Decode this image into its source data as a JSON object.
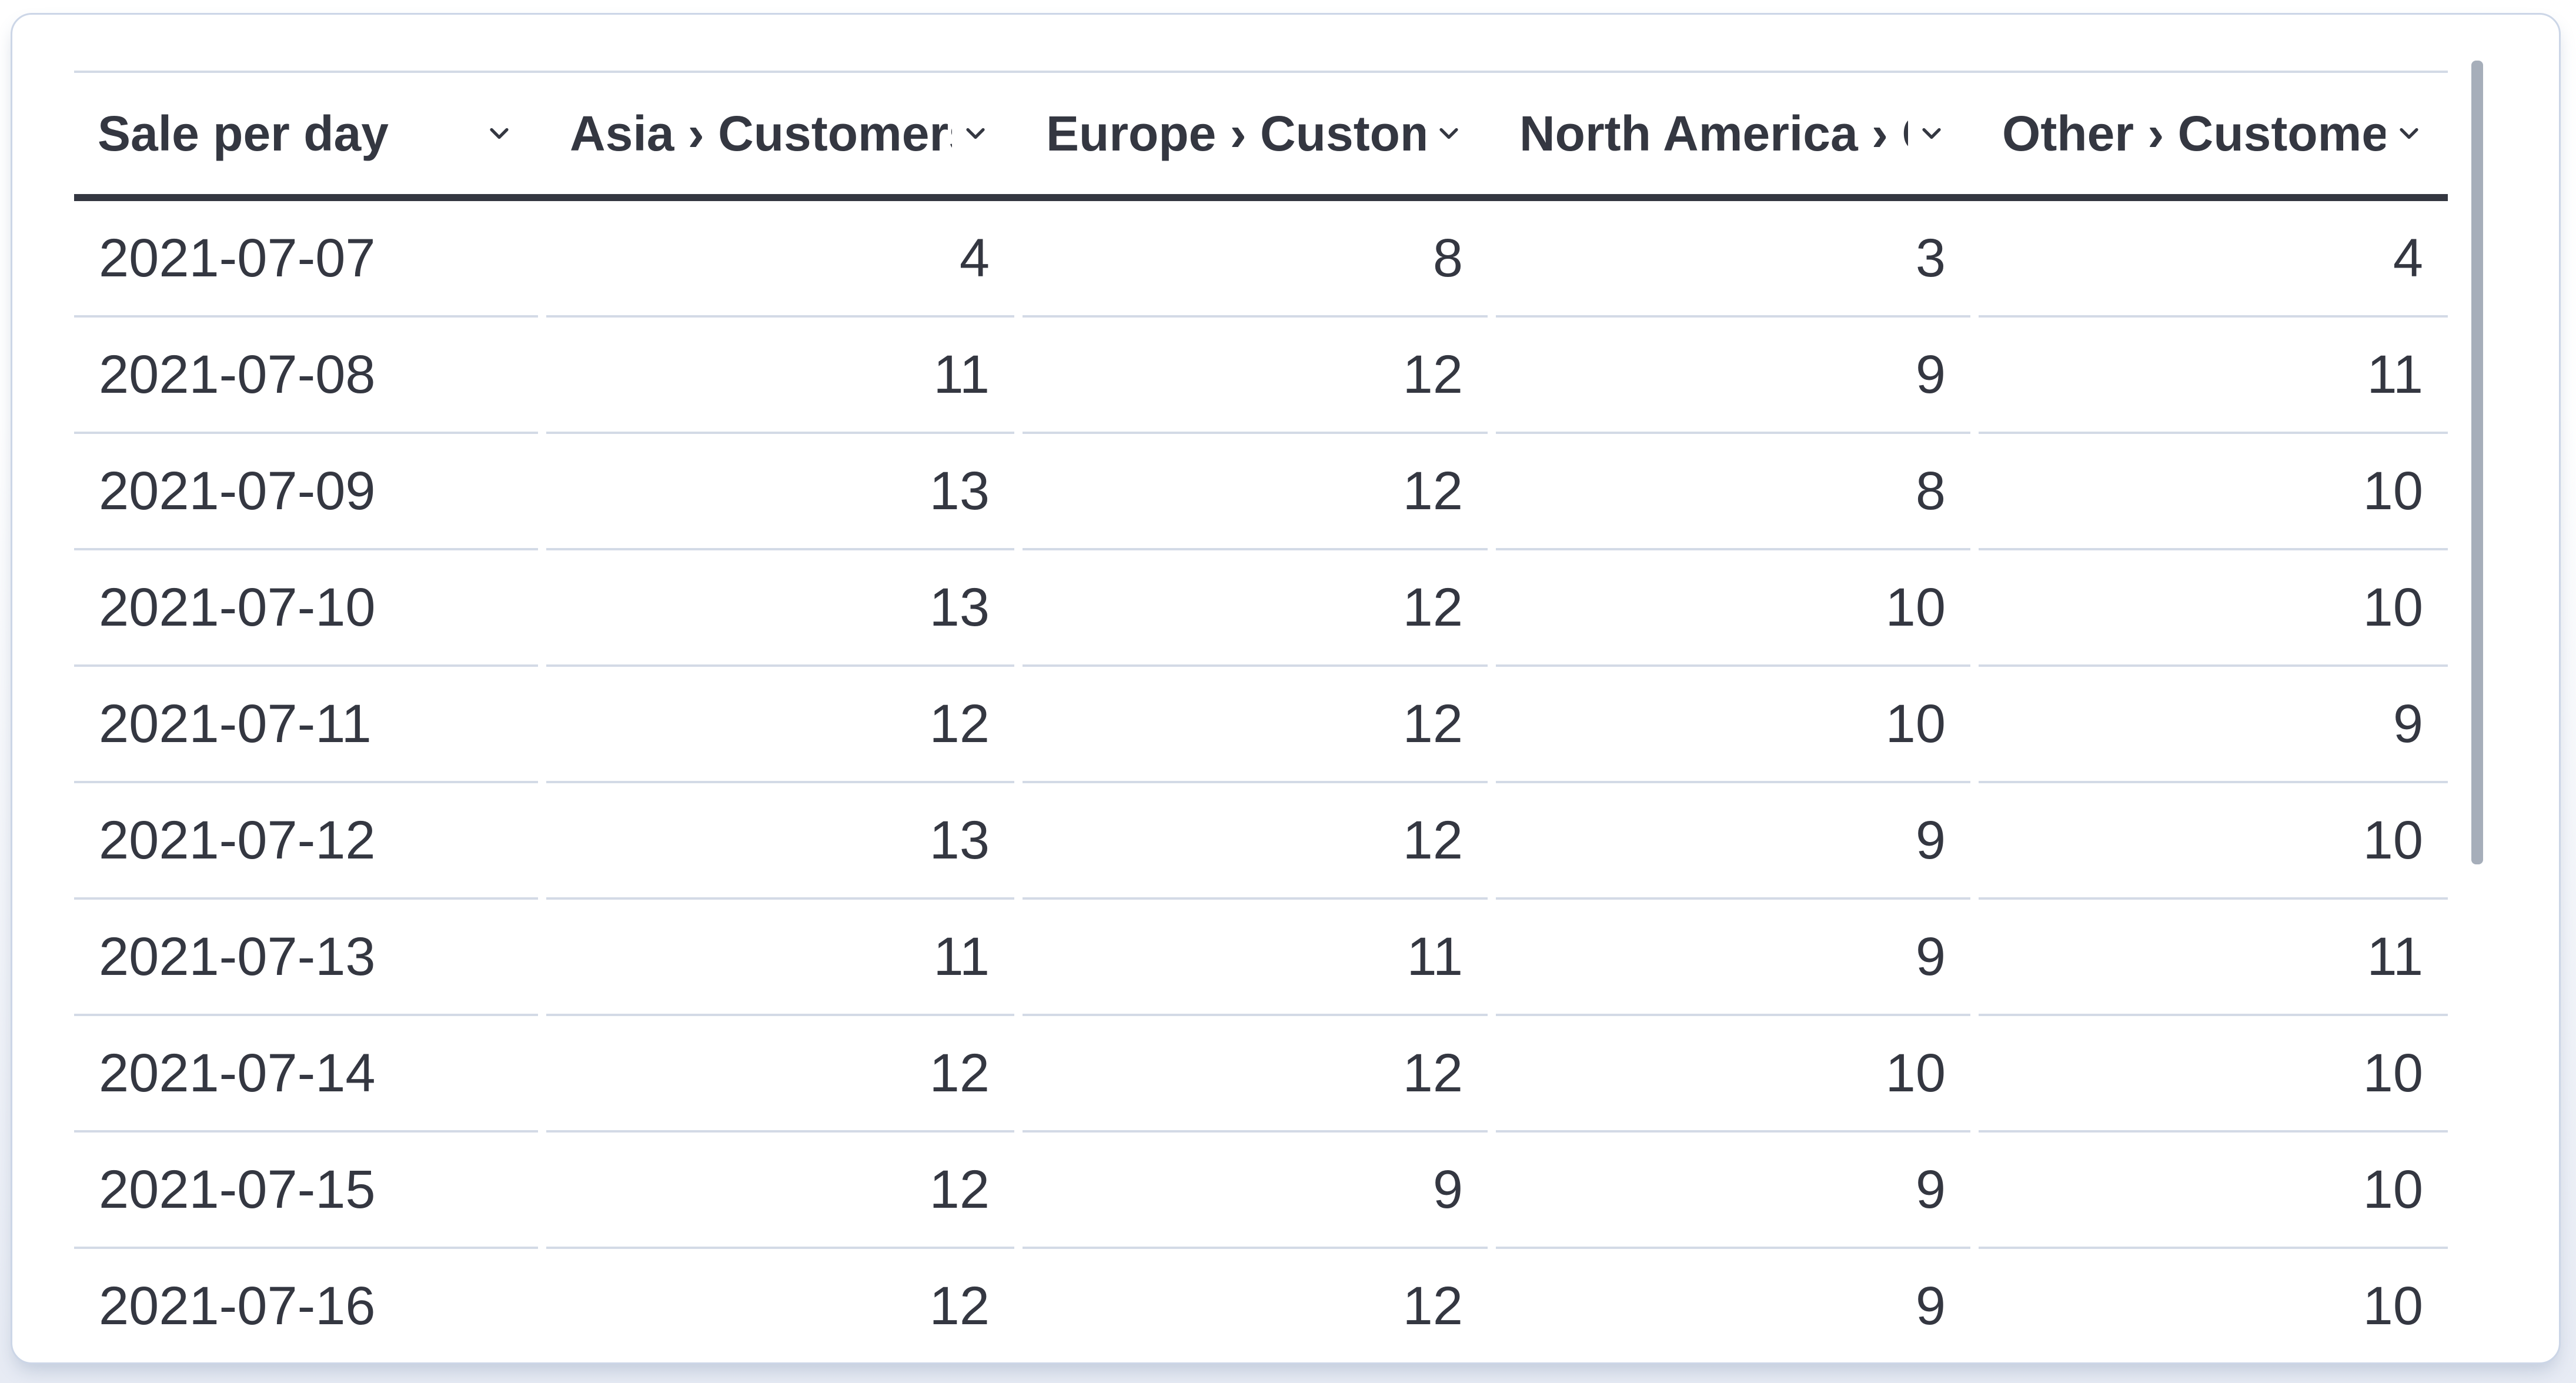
{
  "colors": {
    "page-top": "#ffffff",
    "page-bottom": "#e7ebf4",
    "panel-bg": "#ffffff",
    "panel-border": "#ccd6e7",
    "separator": "#d3dae6",
    "header-rule": "#343741",
    "text": "#343741",
    "scrollbar": "#a6aeba"
  },
  "icons": {
    "column_sort": "chevron-down"
  },
  "table": {
    "columns": [
      {
        "label": "Sale per day",
        "align": "left"
      },
      {
        "label": "Asia › Customers",
        "align": "right"
      },
      {
        "label": "Europe › Customers",
        "align": "right"
      },
      {
        "label": "North America › Customers",
        "align": "right"
      },
      {
        "label": "Other › Customers",
        "align": "right"
      }
    ],
    "rows": [
      {
        "date": "2021-07-07",
        "values": [
          4,
          8,
          3,
          4
        ]
      },
      {
        "date": "2021-07-08",
        "values": [
          11,
          12,
          9,
          11
        ]
      },
      {
        "date": "2021-07-09",
        "values": [
          13,
          12,
          8,
          10
        ]
      },
      {
        "date": "2021-07-10",
        "values": [
          13,
          12,
          10,
          10
        ]
      },
      {
        "date": "2021-07-11",
        "values": [
          12,
          12,
          10,
          9
        ]
      },
      {
        "date": "2021-07-12",
        "values": [
          13,
          12,
          9,
          10
        ]
      },
      {
        "date": "2021-07-13",
        "values": [
          11,
          11,
          9,
          11
        ]
      },
      {
        "date": "2021-07-14",
        "values": [
          12,
          12,
          10,
          10
        ]
      },
      {
        "date": "2021-07-15",
        "values": [
          12,
          9,
          9,
          10
        ]
      },
      {
        "date": "2021-07-16",
        "values": [
          12,
          12,
          9,
          10
        ]
      }
    ]
  }
}
